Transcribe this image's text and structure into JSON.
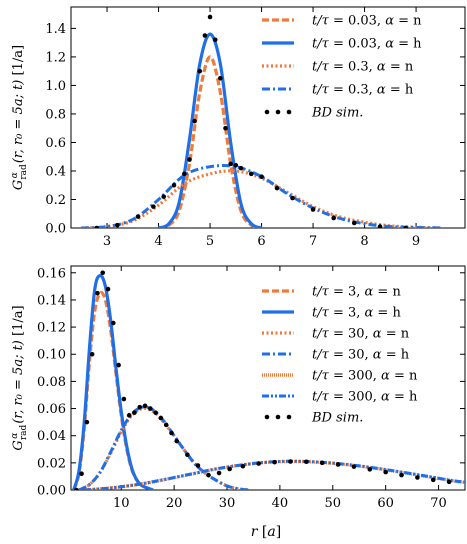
{
  "colors": {
    "n": "#f07a3a",
    "h": "#1f6fe8",
    "sim": "#000000"
  },
  "chart_data": [
    {
      "type": "line",
      "ylabel": "G_rad^α(r, r0 = 5a; t) [1/a]",
      "xlim": [
        2.3,
        9.95
      ],
      "ylim": [
        0,
        1.55
      ],
      "xticks": [
        3,
        4,
        5,
        6,
        7,
        8,
        9
      ],
      "xtick_labels": [
        "3",
        "4",
        "5",
        "6",
        "7",
        "8",
        "9"
      ],
      "yticks": [
        0,
        0.2,
        0.4,
        0.6,
        0.8,
        1.0,
        1.2,
        1.4
      ],
      "ytick_labels": [
        "0.0",
        "0.2",
        "0.4",
        "0.6",
        "0.8",
        "1.0",
        "1.2",
        "1.4"
      ],
      "grid": false,
      "legend_position": "top-right",
      "series": [
        {
          "name": "t/τ = 0.03, α = n",
          "color_key": "n",
          "style": "dashed",
          "x": [
            4.0,
            4.2,
            4.4,
            4.6,
            4.8,
            5.0,
            5.2,
            5.4,
            5.6,
            5.8,
            6.0
          ],
          "y": [
            0.0,
            0.02,
            0.12,
            0.45,
            0.95,
            1.2,
            0.95,
            0.45,
            0.12,
            0.02,
            0.0
          ]
        },
        {
          "name": "t/τ = 0.03, α = h",
          "color_key": "h",
          "style": "solid",
          "x": [
            4.0,
            4.2,
            4.4,
            4.6,
            4.8,
            5.0,
            5.2,
            5.4,
            5.6,
            5.8,
            6.0
          ],
          "y": [
            0.0,
            0.03,
            0.18,
            0.62,
            1.15,
            1.36,
            1.15,
            0.6,
            0.17,
            0.03,
            0.0
          ]
        },
        {
          "name": "t/τ = 0.3, α = n",
          "color_key": "n",
          "style": "dotted",
          "x": [
            2.5,
            3.0,
            3.5,
            4.0,
            4.5,
            5.0,
            5.5,
            6.0,
            6.5,
            7.0,
            7.5,
            8.0,
            8.5,
            9.0,
            9.5
          ],
          "y": [
            0.0,
            0.01,
            0.05,
            0.16,
            0.31,
            0.38,
            0.4,
            0.35,
            0.25,
            0.15,
            0.08,
            0.04,
            0.015,
            0.005,
            0.0
          ]
        },
        {
          "name": "t/τ = 0.3, α = h",
          "color_key": "h",
          "style": "dashdot",
          "x": [
            2.5,
            3.0,
            3.5,
            4.0,
            4.5,
            5.0,
            5.5,
            6.0,
            6.5,
            7.0,
            7.5,
            8.0,
            8.5,
            9.0,
            9.5
          ],
          "y": [
            0.0,
            0.01,
            0.06,
            0.2,
            0.37,
            0.43,
            0.43,
            0.36,
            0.24,
            0.14,
            0.07,
            0.03,
            0.01,
            0.004,
            0.0
          ]
        }
      ],
      "scatter": {
        "name": "BD sim.",
        "color_key": "sim",
        "x": [
          2.8,
          3.2,
          3.6,
          3.9,
          4.1,
          4.3,
          4.5,
          4.6,
          4.7,
          4.8,
          4.9,
          5.0,
          5.1,
          5.2,
          5.3,
          5.4,
          5.5,
          5.6,
          5.8,
          6.0,
          6.3,
          6.6,
          7.0,
          7.4,
          7.8,
          8.3,
          8.8
        ],
        "y": [
          0.0,
          0.02,
          0.08,
          0.15,
          0.22,
          0.3,
          0.38,
          0.48,
          0.75,
          1.1,
          1.35,
          1.48,
          1.32,
          1.05,
          0.7,
          0.45,
          0.44,
          0.42,
          0.38,
          0.36,
          0.28,
          0.21,
          0.13,
          0.07,
          0.035,
          0.01,
          0.0
        ]
      }
    },
    {
      "type": "line",
      "ylabel": "G_rad^α(r, r0 = 5a; t) [1/a]",
      "xlabel": "r [a]",
      "xlim": [
        0.5,
        75
      ],
      "ylim": [
        0,
        0.165
      ],
      "xticks": [
        10,
        20,
        30,
        40,
        50,
        60,
        70
      ],
      "xtick_labels": [
        "10",
        "20",
        "30",
        "40",
        "50",
        "60",
        "70"
      ],
      "yticks": [
        0,
        0.02,
        0.04,
        0.06,
        0.08,
        0.1,
        0.12,
        0.14,
        0.16
      ],
      "ytick_labels": [
        "0.00",
        "0.02",
        "0.04",
        "0.06",
        "0.08",
        "0.10",
        "0.12",
        "0.14",
        "0.16"
      ],
      "grid": false,
      "legend_position": "top-right",
      "series": [
        {
          "name": "t/τ = 3, α = n",
          "color_key": "n",
          "style": "dashed",
          "x": [
            1,
            2,
            3,
            4,
            5,
            6,
            7,
            8,
            9,
            10,
            11,
            12,
            13,
            14,
            16
          ],
          "y": [
            0.0,
            0.012,
            0.045,
            0.095,
            0.132,
            0.145,
            0.14,
            0.118,
            0.086,
            0.055,
            0.031,
            0.015,
            0.007,
            0.003,
            0.0
          ]
        },
        {
          "name": "t/τ = 3, α = h",
          "color_key": "h",
          "style": "solid",
          "x": [
            1,
            2,
            3,
            4,
            5,
            6,
            7,
            8,
            9,
            10,
            11,
            12,
            13,
            14,
            16
          ],
          "y": [
            0.0,
            0.014,
            0.05,
            0.105,
            0.148,
            0.158,
            0.15,
            0.125,
            0.09,
            0.058,
            0.033,
            0.016,
            0.007,
            0.003,
            0.0
          ]
        },
        {
          "name": "t/τ = 30, α = n",
          "color_key": "n",
          "style": "dotted",
          "x": [
            2,
            4,
            6,
            8,
            10,
            12,
            14,
            16,
            18,
            20,
            22,
            24,
            26,
            28,
            30,
            32,
            34
          ],
          "y": [
            0.0,
            0.004,
            0.013,
            0.027,
            0.043,
            0.055,
            0.06,
            0.058,
            0.05,
            0.04,
            0.029,
            0.019,
            0.012,
            0.007,
            0.003,
            0.001,
            0.0
          ]
        },
        {
          "name": "t/τ = 30, α = h",
          "color_key": "h",
          "style": "dashdot",
          "x": [
            2,
            4,
            6,
            8,
            10,
            12,
            14,
            16,
            18,
            20,
            22,
            24,
            26,
            28,
            30,
            32,
            34
          ],
          "y": [
            0.0,
            0.004,
            0.013,
            0.028,
            0.044,
            0.056,
            0.061,
            0.059,
            0.051,
            0.04,
            0.029,
            0.019,
            0.012,
            0.007,
            0.003,
            0.001,
            0.0
          ]
        },
        {
          "name": "t/τ = 300, α = n",
          "color_key": "n",
          "style": "striped",
          "x": [
            3,
            8,
            13,
            18,
            23,
            28,
            33,
            38,
            43,
            48,
            53,
            58,
            63,
            68,
            73,
            75
          ],
          "y": [
            0.0,
            0.0015,
            0.004,
            0.0075,
            0.0115,
            0.0155,
            0.0185,
            0.0205,
            0.021,
            0.0202,
            0.0185,
            0.016,
            0.013,
            0.0098,
            0.0065,
            0.0056
          ]
        },
        {
          "name": "t/τ = 300, α = h",
          "color_key": "h",
          "style": "dashdotdot",
          "x": [
            3,
            8,
            13,
            18,
            23,
            28,
            33,
            38,
            43,
            48,
            53,
            58,
            63,
            68,
            73,
            75
          ],
          "y": [
            0.0,
            0.0015,
            0.004,
            0.0076,
            0.0116,
            0.0156,
            0.0186,
            0.0206,
            0.0212,
            0.0204,
            0.0187,
            0.0162,
            0.0132,
            0.01,
            0.0067,
            0.0058
          ]
        }
      ],
      "scatter": {
        "name": "BD sim.",
        "color_key": "sim",
        "x": [
          1.5,
          2.5,
          3.5,
          4.5,
          5.5,
          6.5,
          7.5,
          8.5,
          9.5,
          10.5,
          11.5,
          12.5,
          13.5,
          14.5,
          15.5,
          16.5,
          17.5,
          18.5,
          19.5,
          20.5,
          22.5,
          24.5,
          26.5,
          28.5,
          30.5,
          33,
          36,
          39,
          42,
          45,
          48,
          51,
          54,
          57,
          60,
          63,
          66,
          69,
          72
        ],
        "y": [
          0.0,
          0.012,
          0.05,
          0.1,
          0.145,
          0.16,
          0.148,
          0.123,
          0.092,
          0.067,
          0.055,
          0.057,
          0.061,
          0.062,
          0.06,
          0.057,
          0.053,
          0.048,
          0.042,
          0.036,
          0.026,
          0.018,
          0.011,
          0.0125,
          0.0155,
          0.0175,
          0.0195,
          0.0205,
          0.021,
          0.0208,
          0.02,
          0.0188,
          0.0172,
          0.0152,
          0.0132,
          0.011,
          0.0092,
          0.0075,
          0.006
        ]
      }
    }
  ]
}
